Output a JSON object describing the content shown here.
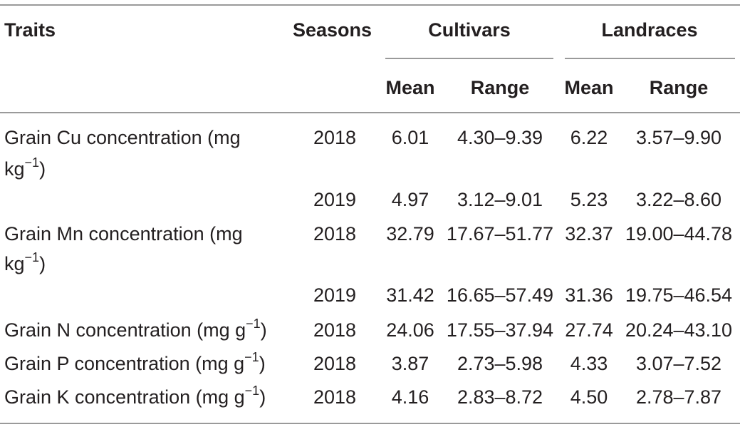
{
  "table": {
    "headers": {
      "traits": "Traits",
      "seasons": "Seasons",
      "cultivars": "Cultivars",
      "landraces": "Landraces",
      "mean": "Mean",
      "range": "Range"
    },
    "rows": [
      {
        "trait_line1": "Grain Cu concentration (mg",
        "trait_line2_base": "kg",
        "trait_line2_sup": "−1",
        "trait_line2_end": ")",
        "season": "2018",
        "cult_mean": "6.01",
        "cult_range": "4.30–9.39",
        "land_mean": "6.22",
        "land_range": "3.57–9.90"
      },
      {
        "season": "2019",
        "cult_mean": "4.97",
        "cult_range": "3.12–9.01",
        "land_mean": "5.23",
        "land_range": "3.22–8.60"
      },
      {
        "trait_line1": "Grain Mn concentration (mg",
        "trait_line2_base": "kg",
        "trait_line2_sup": "−1",
        "trait_line2_end": ")",
        "season": "2018",
        "cult_mean": "32.79",
        "cult_range": "17.67–51.77",
        "land_mean": "32.37",
        "land_range": "19.00–44.78"
      },
      {
        "season": "2019",
        "cult_mean": "31.42",
        "cult_range": "16.65–57.49",
        "land_mean": "31.36",
        "land_range": "19.75–46.54"
      },
      {
        "trait_base": "Grain N concentration (mg g",
        "trait_sup": "−1",
        "trait_end": ")",
        "season": "2018",
        "cult_mean": "24.06",
        "cult_range": "17.55–37.94",
        "land_mean": "27.74",
        "land_range": "20.24–43.10"
      },
      {
        "trait_base": "Grain P concentration (mg g",
        "trait_sup": "−1",
        "trait_end": ")",
        "season": "2018",
        "cult_mean": "3.87",
        "cult_range": "2.73–5.98",
        "land_mean": "4.33",
        "land_range": "3.07–7.52"
      },
      {
        "trait_base": "Grain K concentration (mg g",
        "trait_sup": "−1",
        "trait_end": ")",
        "season": "2018",
        "cult_mean": "4.16",
        "cult_range": "2.83–8.72",
        "land_mean": "4.50",
        "land_range": "2.78–7.87"
      }
    ]
  }
}
